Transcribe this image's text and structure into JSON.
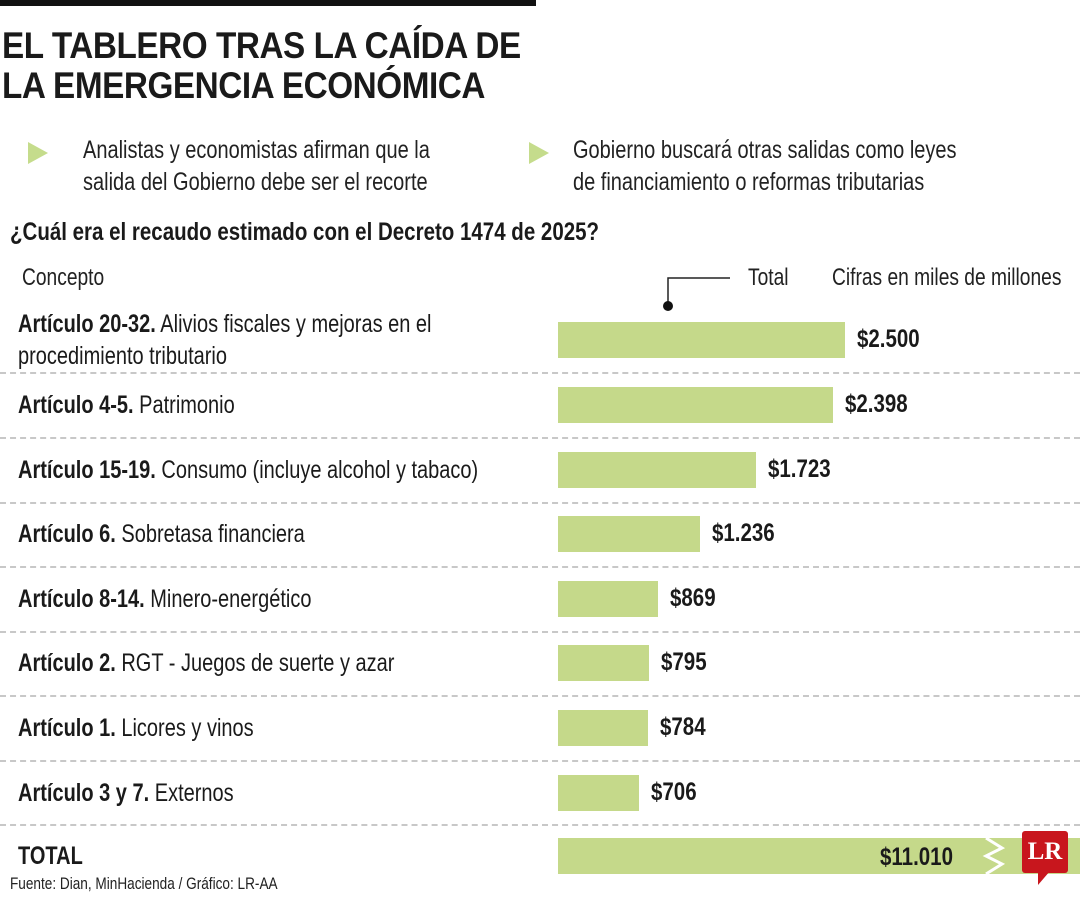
{
  "header": {
    "title_line1": "EL TABLERO TRAS LA CAÍDA DE",
    "title_line2": "LA EMERGENCIA ECONÓMICA",
    "bullets": [
      {
        "line1": "Analistas y economistas afirman que la",
        "line2": "salida del Gobierno debe ser el recorte"
      },
      {
        "line1": "Gobierno buscará otras salidas como leyes",
        "line2": "de financiamiento o reformas tributarias"
      }
    ]
  },
  "colors": {
    "bar": "#c5d98a",
    "bullet": "#c5dc8c",
    "logo": "#c8161d"
  },
  "chart_data": {
    "type": "bar",
    "orientation": "horizontal",
    "title": "¿Cuál era el recaudo estimado con el Decreto 1474 de 2025?",
    "category_header": "Concepto",
    "value_header": "Total",
    "units_note": "Cifras en miles de millones",
    "rows": [
      {
        "bold": "Artículo 20-32.",
        "label": "Alivios fiscales y mejoras en el",
        "label2": "procedimiento tributario",
        "value": 2500,
        "display": "$2.500"
      },
      {
        "bold": "Artículo 4-5.",
        "label": "Patrimonio",
        "value": 2398,
        "display": "$2.398"
      },
      {
        "bold": "Artículo 15-19.",
        "label": "Consumo (incluye alcohol y tabaco)",
        "value": 1723,
        "display": "$1.723"
      },
      {
        "bold": "Artículo 6.",
        "label": "Sobretasa financiera",
        "value": 1236,
        "display": "$1.236"
      },
      {
        "bold": "Artículo 8-14.",
        "label": "Minero-energético",
        "value": 869,
        "display": "$869"
      },
      {
        "bold": "Artículo 2.",
        "label": "RGT - Juegos de suerte y azar",
        "value": 795,
        "display": "$795"
      },
      {
        "bold": "Artículo 1.",
        "label": "Licores y vinos",
        "value": 784,
        "display": "$784"
      },
      {
        "bold": "Artículo 3 y 7.",
        "label": "Externos",
        "value": 706,
        "display": "$706"
      }
    ],
    "total": {
      "label": "TOTAL",
      "value": 11010,
      "display": "$11.010"
    }
  },
  "footer": {
    "source": "Fuente: Dian, MinHacienda / Gráfico: LR-AA",
    "logo": "LR"
  }
}
